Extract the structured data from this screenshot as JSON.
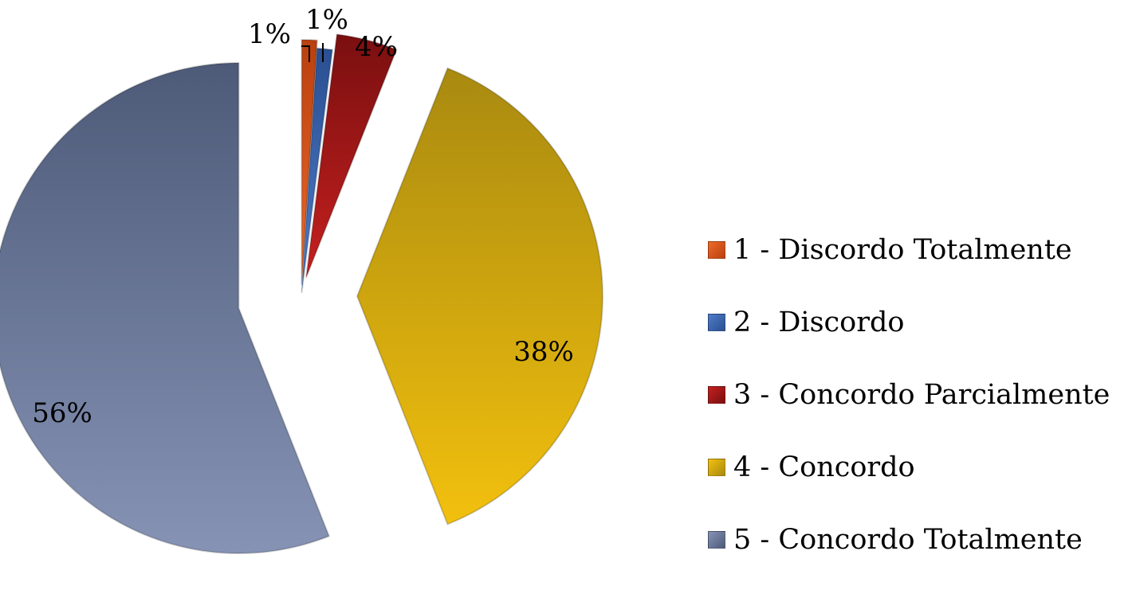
{
  "chart_data": {
    "type": "pie",
    "categories": [
      "1 - Discordo Totalmente",
      "2 - Discordo",
      "3 - Concordo Parcialmente",
      "4 - Concordo",
      "5 - Concordo Totalmente"
    ],
    "values": [
      1,
      1,
      4,
      38,
      56
    ],
    "value_labels": [
      "1%",
      "1%",
      "4%",
      "38%",
      "56%"
    ],
    "colors": [
      "#d9541e",
      "#3a67b0",
      "#a6191b",
      "#e1b00a",
      "#6a7899"
    ],
    "legend_placement": "right",
    "exploded": true
  }
}
